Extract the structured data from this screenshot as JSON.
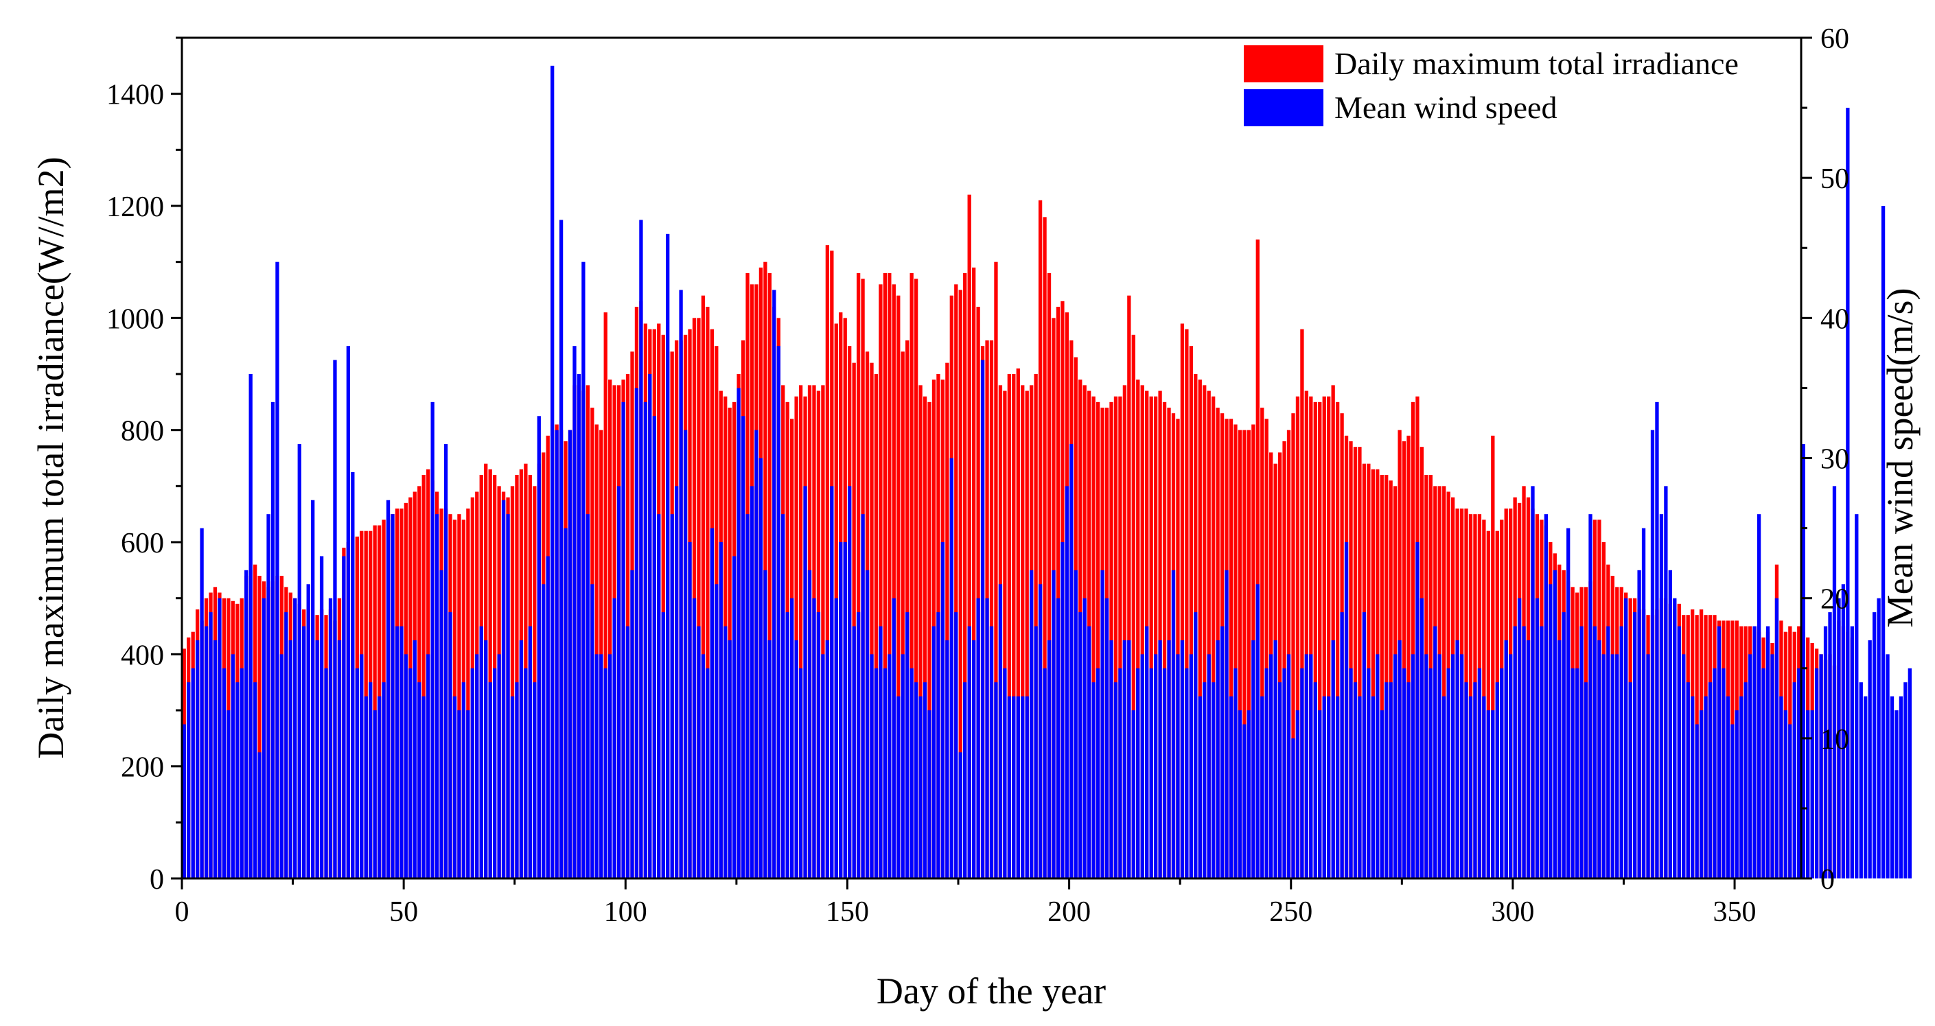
{
  "chart_data": {
    "type": "bar",
    "title": "",
    "xlabel": "Day of the year",
    "ylabel_left": "Daily maximum total irradiance(W//m2)",
    "ylabel_right": "Mean wind speed(m/s)",
    "xlim": [
      0,
      365
    ],
    "ylim_left": [
      0,
      1500
    ],
    "ylim_right": [
      0,
      60
    ],
    "x_ticks": [
      0,
      50,
      100,
      150,
      200,
      250,
      300,
      350
    ],
    "y_ticks_left": [
      0,
      200,
      400,
      600,
      800,
      1000,
      1200,
      1400
    ],
    "y_ticks_right": [
      0,
      10,
      20,
      30,
      40,
      50,
      60
    ],
    "grid": false,
    "legend_position": "top-right",
    "colors": {
      "irradiance": "#ff0000",
      "wind": "#0000ff"
    },
    "series": [
      {
        "name": "Daily maximum total irradiance",
        "axis": "left",
        "color": "#ff0000",
        "values": [
          410,
          430,
          440,
          480,
          460,
          500,
          510,
          520,
          510,
          500,
          500,
          495,
          490,
          500,
          540,
          550,
          560,
          540,
          530,
          520,
          530,
          540,
          540,
          520,
          510,
          500,
          490,
          480,
          480,
          470,
          470,
          480,
          470,
          480,
          460,
          500,
          590,
          600,
          610,
          610,
          620,
          620,
          620,
          630,
          630,
          640,
          640,
          650,
          660,
          660,
          670,
          680,
          690,
          700,
          720,
          730,
          710,
          690,
          660,
          660,
          650,
          640,
          650,
          640,
          660,
          680,
          690,
          720,
          740,
          730,
          720,
          700,
          690,
          680,
          700,
          720,
          730,
          740,
          720,
          700,
          740,
          760,
          790,
          800,
          810,
          800,
          780,
          800,
          880,
          880,
          870,
          880,
          840,
          810,
          800,
          1010,
          890,
          880,
          880,
          890,
          900,
          940,
          1020,
          1030,
          990,
          980,
          980,
          990,
          970,
          940,
          940,
          960,
          960,
          970,
          980,
          1000,
          1000,
          1040,
          1020,
          980,
          950,
          870,
          860,
          840,
          850,
          900,
          960,
          1080,
          1060,
          1060,
          1090,
          1100,
          1080,
          1020,
          1000,
          880,
          850,
          820,
          860,
          880,
          860,
          880,
          880,
          870,
          880,
          1130,
          1120,
          990,
          1010,
          1000,
          950,
          920,
          1080,
          1070,
          940,
          920,
          900,
          1060,
          1080,
          1080,
          1060,
          1040,
          940,
          960,
          1080,
          1070,
          880,
          860,
          850,
          890,
          900,
          890,
          920,
          1040,
          1060,
          1050,
          1080,
          1220,
          1090,
          1020,
          950,
          960,
          960,
          1100,
          880,
          870,
          900,
          900,
          910,
          880,
          870,
          880,
          900,
          1210,
          1180,
          1080,
          1000,
          1020,
          1030,
          1010,
          960,
          930,
          890,
          880,
          870,
          860,
          850,
          840,
          840,
          850,
          860,
          860,
          880,
          1040,
          970,
          890,
          880,
          870,
          860,
          860,
          870,
          850,
          840,
          830,
          820,
          990,
          980,
          950,
          900,
          890,
          880,
          870,
          860,
          840,
          830,
          820,
          820,
          810,
          800,
          800,
          800,
          810,
          1140,
          840,
          820,
          760,
          740,
          760,
          780,
          800,
          830,
          860,
          980,
          870,
          860,
          850,
          850,
          860,
          860,
          880,
          850,
          830,
          790,
          780,
          770,
          770,
          740,
          740,
          730,
          730,
          720,
          720,
          710,
          700,
          800,
          780,
          790,
          850,
          860,
          770,
          720,
          720,
          700,
          700,
          700,
          690,
          680,
          660,
          660,
          660,
          650,
          650,
          650,
          640,
          620,
          790,
          620,
          640,
          660,
          660,
          680,
          670,
          700,
          680,
          660,
          650,
          640,
          630,
          600,
          580,
          560,
          550,
          530,
          520,
          510,
          520,
          520,
          530,
          640,
          640,
          600,
          560,
          540,
          520,
          520,
          510,
          500,
          500,
          480,
          480,
          470,
          470,
          480,
          500,
          500,
          490,
          480,
          490,
          470,
          470,
          480,
          470,
          480,
          470,
          470,
          470,
          460,
          460,
          460,
          460,
          460,
          450,
          450,
          450,
          450,
          440,
          430,
          440,
          420,
          560,
          460,
          440,
          450,
          440,
          450,
          440,
          430,
          420,
          410,
          400,
          390,
          400,
          380,
          460,
          450,
          440,
          430
        ]
      },
      {
        "name": "Mean wind speed",
        "axis": "right",
        "color": "#0000ff",
        "values": [
          11,
          14,
          15,
          17,
          25,
          18,
          19,
          17,
          20,
          15,
          12,
          16,
          14,
          15,
          22,
          36,
          14,
          9,
          20,
          26,
          34,
          44,
          16,
          19,
          17,
          20,
          31,
          18,
          21,
          27,
          17,
          23,
          15,
          20,
          37,
          17,
          23,
          38,
          29,
          15,
          16,
          13,
          14,
          12,
          13,
          14,
          27,
          26,
          18,
          18,
          16,
          15,
          17,
          14,
          13,
          16,
          34,
          26,
          22,
          31,
          19,
          13,
          12,
          14,
          12,
          15,
          16,
          18,
          17,
          14,
          15,
          16,
          27,
          26,
          13,
          14,
          17,
          15,
          18,
          14,
          33,
          21,
          23,
          58,
          32,
          47,
          25,
          32,
          38,
          36,
          44,
          26,
          21,
          16,
          16,
          15,
          16,
          20,
          28,
          34,
          18,
          22,
          35,
          47,
          34,
          36,
          33,
          26,
          19,
          46,
          26,
          28,
          42,
          32,
          24,
          20,
          18,
          16,
          15,
          25,
          21,
          24,
          18,
          17,
          23,
          35,
          33,
          26,
          28,
          32,
          30,
          22,
          17,
          42,
          38,
          26,
          19,
          20,
          17,
          15,
          28,
          22,
          20,
          19,
          16,
          17,
          28,
          20,
          24,
          24,
          28,
          18,
          19,
          26,
          22,
          16,
          15,
          18,
          15,
          16,
          20,
          13,
          16,
          19,
          15,
          14,
          13,
          14,
          12,
          18,
          19,
          24,
          17,
          30,
          19,
          9,
          14,
          18,
          17,
          20,
          37,
          20,
          18,
          14,
          21,
          15,
          13,
          13,
          13,
          13,
          13,
          22,
          18,
          21,
          15,
          17,
          22,
          20,
          24,
          28,
          31,
          22,
          19,
          20,
          18,
          14,
          15,
          22,
          20,
          17,
          14,
          15,
          17,
          17,
          12,
          15,
          16,
          18,
          15,
          16,
          17,
          15,
          17,
          22,
          16,
          17,
          15,
          16,
          19,
          13,
          14,
          16,
          14,
          17,
          18,
          22,
          13,
          15,
          12,
          11,
          12,
          17,
          21,
          13,
          15,
          16,
          17,
          14,
          15,
          16,
          10,
          12,
          15,
          16,
          16,
          14,
          12,
          13,
          13,
          17,
          13,
          19,
          24,
          15,
          14,
          13,
          19,
          15,
          13,
          16,
          12,
          14,
          14,
          16,
          17,
          15,
          14,
          16,
          24,
          20,
          16,
          15,
          18,
          16,
          13,
          15,
          16,
          17,
          16,
          14,
          13,
          14,
          15,
          13,
          12,
          12,
          14,
          15,
          17,
          16,
          18,
          20,
          18,
          17,
          28,
          20,
          18,
          26,
          21,
          22,
          17,
          19,
          25,
          15,
          15,
          18,
          14,
          26,
          18,
          17,
          16,
          18,
          16,
          16,
          18,
          20,
          14,
          19,
          22,
          25,
          16,
          32,
          34,
          26,
          28,
          22,
          20,
          18,
          16,
          14,
          13,
          11,
          12,
          13,
          14,
          15,
          18,
          15,
          13,
          11,
          12,
          13,
          14,
          16,
          18,
          26,
          15,
          18,
          16,
          20,
          13,
          12,
          11,
          14,
          15,
          31,
          12,
          12,
          15,
          16,
          18,
          19,
          28,
          20,
          21,
          55,
          18,
          26,
          14,
          13,
          17,
          19,
          20,
          48,
          16,
          13,
          12,
          13,
          14,
          15
        ]
      }
    ]
  }
}
